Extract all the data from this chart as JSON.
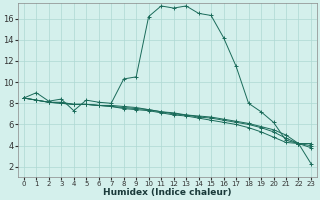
{
  "xlabel": "Humidex (Indice chaleur)",
  "background_color": "#d4f0ec",
  "grid_color": "#aed8d3",
  "line_color": "#1a6b5a",
  "xlim": [
    -0.5,
    23.5
  ],
  "ylim": [
    1.0,
    17.5
  ],
  "xticks": [
    0,
    1,
    2,
    3,
    4,
    5,
    6,
    7,
    8,
    9,
    10,
    11,
    12,
    13,
    14,
    15,
    16,
    17,
    18,
    19,
    20,
    21,
    22,
    23
  ],
  "yticks": [
    2,
    4,
    6,
    8,
    10,
    12,
    14,
    16
  ],
  "series": [
    {
      "x": [
        0,
        1,
        2,
        3,
        4,
        5,
        6,
        7,
        8,
        9,
        10,
        11,
        12,
        13,
        14,
        15,
        16,
        17,
        18,
        19,
        20,
        21,
        22,
        23
      ],
      "y": [
        8.5,
        9.0,
        8.2,
        8.4,
        7.3,
        8.3,
        8.1,
        8.0,
        10.3,
        10.5,
        16.2,
        17.2,
        17.0,
        17.2,
        16.5,
        16.3,
        14.2,
        11.5,
        8.0,
        7.2,
        6.2,
        4.5,
        4.2,
        4.2
      ],
      "marker": "+"
    },
    {
      "x": [
        0,
        1,
        2,
        3,
        4,
        5,
        6,
        7,
        8,
        9,
        10,
        11,
        12,
        13,
        14,
        15,
        16,
        17,
        18,
        19,
        20,
        21,
        22,
        23
      ],
      "y": [
        8.5,
        8.3,
        8.1,
        8.1,
        7.9,
        7.9,
        7.8,
        7.8,
        7.7,
        7.6,
        7.4,
        7.2,
        7.1,
        6.9,
        6.8,
        6.7,
        6.5,
        6.3,
        6.1,
        5.8,
        5.5,
        5.0,
        4.2,
        2.3
      ],
      "marker": "+"
    },
    {
      "x": [
        0,
        1,
        2,
        3,
        4,
        5,
        6,
        7,
        8,
        9,
        10,
        11,
        12,
        13,
        14,
        15,
        16,
        17,
        18,
        19,
        20,
        21,
        22,
        23
      ],
      "y": [
        8.5,
        8.3,
        8.1,
        8.0,
        7.9,
        7.9,
        7.8,
        7.7,
        7.6,
        7.5,
        7.4,
        7.2,
        7.0,
        6.9,
        6.7,
        6.6,
        6.4,
        6.2,
        6.0,
        5.7,
        5.3,
        4.7,
        4.2,
        3.8
      ],
      "marker": "+"
    },
    {
      "x": [
        0,
        1,
        2,
        3,
        4,
        5,
        6,
        7,
        8,
        9,
        10,
        11,
        12,
        13,
        14,
        15,
        16,
        17,
        18,
        19,
        20,
        21,
        22,
        23
      ],
      "y": [
        8.5,
        8.3,
        8.1,
        8.0,
        7.9,
        7.9,
        7.8,
        7.7,
        7.5,
        7.4,
        7.3,
        7.1,
        6.9,
        6.8,
        6.6,
        6.4,
        6.2,
        6.0,
        5.7,
        5.3,
        4.8,
        4.3,
        4.2,
        4.0
      ],
      "marker": "+"
    }
  ]
}
